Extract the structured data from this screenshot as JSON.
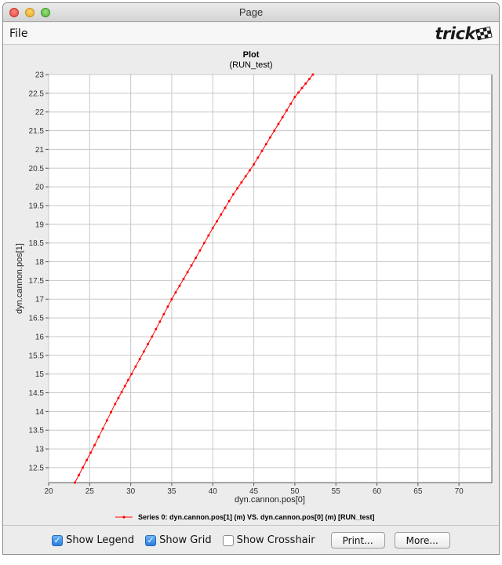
{
  "window": {
    "title": "Page",
    "traffic_lights": {
      "close": "#e0443e",
      "minimize": "#e6a823",
      "zoom": "#4fb336"
    }
  },
  "menubar": {
    "file_label": "File",
    "logo_text": "trick",
    "logo_icon": "checkered-flag-icon"
  },
  "chart_data": {
    "type": "line",
    "title": "Plot",
    "subtitle": "(RUN_test)",
    "xlabel": "dyn.cannon.pos[0]",
    "ylabel": "dyn.cannon.pos[1]",
    "xlim": [
      20,
      74
    ],
    "ylim": [
      12.1,
      23
    ],
    "x_ticks": [
      20,
      25,
      30,
      35,
      40,
      45,
      50,
      55,
      60,
      65,
      70
    ],
    "y_ticks": [
      12.5,
      13,
      13.5,
      14,
      14.5,
      15,
      15.5,
      16,
      16.5,
      17,
      17.5,
      18,
      18.5,
      19,
      19.5,
      20,
      20.5,
      21,
      21.5,
      22,
      22.5,
      23
    ],
    "grid": true,
    "legend_placement": "bottom",
    "series": [
      {
        "name": "Series  0: dyn.cannon.pos[1] (m) VS. dyn.cannon.pos[0] (m) [RUN_test]",
        "color": "#ff0000",
        "marker": "dot",
        "x": [
          23.2,
          25.6,
          28.1,
          30.1,
          32.6,
          35.0,
          37.4,
          40.0,
          42.5,
          45.0,
          47.5,
          50.0,
          52.2
        ],
        "y": [
          12.1,
          13.1,
          14.2,
          15.0,
          16.0,
          17.0,
          17.9,
          18.9,
          19.8,
          20.6,
          21.5,
          22.4,
          23.0
        ]
      }
    ]
  },
  "controls": {
    "show_legend": {
      "label": "Show Legend",
      "checked": true
    },
    "show_grid": {
      "label": "Show Grid",
      "checked": true
    },
    "show_crosshair": {
      "label": "Show Crosshair",
      "checked": false
    },
    "print_label": "Print...",
    "more_label": "More..."
  }
}
